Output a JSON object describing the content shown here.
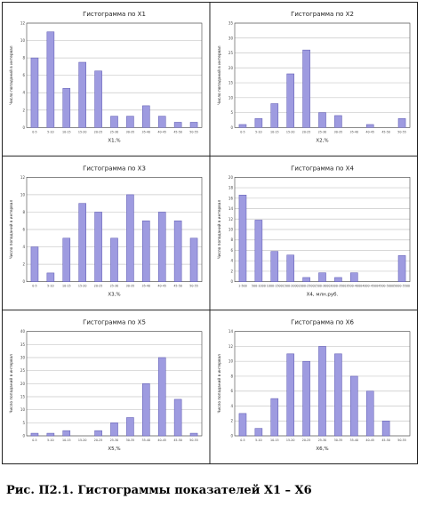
{
  "caption": "Рис. П2.1. Гистограммы показателей X1 – X6",
  "chart_data": [
    {
      "type": "bar",
      "title": "Гистограмма по X1",
      "xlabel": "X1,%",
      "ylabel": "Число попаданий в интервал",
      "ylim": [
        0,
        12
      ],
      "yticks": [
        0,
        2,
        4,
        6,
        8,
        10,
        12
      ],
      "categories": [
        "0-5",
        "5-10",
        "10-15",
        "15-20",
        "20-25",
        "25-30",
        "30-35",
        "35-40",
        "40-45",
        "45-50",
        "50-55"
      ],
      "values": [
        8,
        11,
        4.5,
        7.5,
        6.5,
        1.3,
        1.3,
        2.5,
        1.3,
        0.6,
        0.6
      ]
    },
    {
      "type": "bar",
      "title": "Гистограмма по X2",
      "xlabel": "X2,%",
      "ylabel": "Число попаданий в интервал",
      "ylim": [
        0,
        35
      ],
      "yticks": [
        0,
        5,
        10,
        15,
        20,
        25,
        30,
        35
      ],
      "categories": [
        "0-5",
        "5-10",
        "10-15",
        "15-20",
        "20-25",
        "25-30",
        "30-35",
        "35-40",
        "40-45",
        "45-50",
        "50-55"
      ],
      "values": [
        1,
        3,
        8,
        18,
        26,
        5,
        4,
        0,
        1,
        0,
        3
      ]
    },
    {
      "type": "bar",
      "title": "Гистограмма по X3",
      "xlabel": "X3,%",
      "ylabel": "Число попаданий в интервал",
      "ylim": [
        0,
        12
      ],
      "yticks": [
        0,
        2,
        4,
        6,
        8,
        10,
        12
      ],
      "categories": [
        "0-5",
        "5-10",
        "10-15",
        "15-20",
        "20-25",
        "25-30",
        "30-35",
        "35-40",
        "40-45",
        "45-50",
        "50-55"
      ],
      "values": [
        4,
        1,
        5,
        9,
        8,
        5,
        10,
        7,
        8,
        7,
        5
      ]
    },
    {
      "type": "bar",
      "title": "Гистограмма по X4",
      "xlabel": "X4, млн.руб.",
      "ylabel": "Число попаданий в интервал",
      "ylim": [
        0,
        20
      ],
      "yticks": [
        0,
        2,
        4,
        6,
        8,
        10,
        12,
        14,
        16,
        18,
        20
      ],
      "categories": [
        "1-500",
        "500-1000",
        "1000-1500",
        "1500-2000",
        "2000-2500",
        "2500-3000",
        "3000-3500",
        "3500-4000",
        "4000-4500",
        "4500-5000",
        "5000-5500"
      ],
      "values": [
        16.6,
        11.8,
        5.8,
        5.1,
        0.8,
        1.7,
        0.8,
        1.7,
        0,
        0,
        5
      ]
    },
    {
      "type": "bar",
      "title": "Гистограмма по X5",
      "xlabel": "X5,%",
      "ylabel": "Число попаданий в интервал",
      "ylim": [
        0,
        40
      ],
      "yticks": [
        0,
        5,
        10,
        15,
        20,
        25,
        30,
        35,
        40
      ],
      "categories": [
        "0-5",
        "5-10",
        "10-15",
        "15-20",
        "20-25",
        "25-30",
        "30-35",
        "35-40",
        "40-45",
        "45-50",
        "50-55"
      ],
      "values": [
        1,
        1,
        2,
        0,
        2,
        5,
        7,
        20,
        30,
        14,
        1
      ]
    },
    {
      "type": "bar",
      "title": "Гистограмма по X6",
      "xlabel": "X6,%",
      "ylabel": "Число попаданий в интервал",
      "ylim": [
        0,
        14
      ],
      "yticks": [
        0,
        2,
        4,
        6,
        8,
        10,
        12,
        14
      ],
      "categories": [
        "0-5",
        "5-10",
        "10-15",
        "15-20",
        "20-25",
        "25-30",
        "30-35",
        "35-40",
        "40-45",
        "45-50",
        "50-55"
      ],
      "values": [
        3,
        1,
        5,
        11,
        10,
        12,
        11,
        8,
        6,
        2,
        0
      ]
    }
  ],
  "colors": {
    "bar_fill": "#9e9be0",
    "bar_stroke": "#5a56b0",
    "grid": "#c8c8c8",
    "frame": "#444444",
    "panel_border": "#222222"
  }
}
